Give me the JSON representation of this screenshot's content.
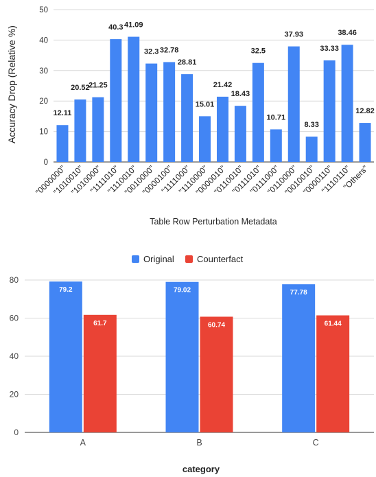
{
  "chart_data": [
    {
      "type": "bar",
      "title": "",
      "xlabel": "Table Row Perturbation Metadata",
      "ylabel": "Accuracy Drop (Relative %)",
      "ylim": [
        0,
        50
      ],
      "yticks": [
        "0",
        "10",
        "20",
        "30",
        "40",
        "50"
      ],
      "grid": true,
      "categories": [
        "\"0000000\"",
        "\"1010010\"",
        "\"1010000\"",
        "\"1111010\"",
        "\"1110010\"",
        "\"0010000\"",
        "\"0000100\"",
        "\"1111000\"",
        "\"1110000\"",
        "\"0000010\"",
        "\"0110010\"",
        "\"0111010\"",
        "\"0111000\"",
        "\"0110000\"",
        "\"0010010\"",
        "\"0000110\"",
        "\"1110110\"",
        "\"Others\""
      ],
      "values": [
        12.11,
        20.52,
        21.25,
        40.3,
        41.09,
        32.3,
        32.78,
        28.81,
        15.01,
        21.42,
        18.43,
        32.5,
        10.71,
        37.93,
        8.33,
        33.33,
        38.46,
        12.82
      ],
      "value_labels": [
        "12.11",
        "20.52",
        "21.25",
        "40.3",
        "41.09",
        "32.3",
        "32.78",
        "28.81",
        "15.01",
        "21.42",
        "18.43",
        "32.5",
        "10.71",
        "37.93",
        "8.33",
        "33.33",
        "38.46",
        "12.82"
      ],
      "bar_color": "#4285f4"
    },
    {
      "type": "bar",
      "title": "",
      "xlabel": "category",
      "ylabel": "",
      "ylim": [
        0,
        80
      ],
      "yticks": [
        "0",
        "20",
        "40",
        "60",
        "80"
      ],
      "grid": true,
      "legend_position": "top",
      "categories": [
        "A",
        "B",
        "C"
      ],
      "series": [
        {
          "name": "Original",
          "color": "#4285f4",
          "values": [
            79.2,
            79.02,
            77.78
          ],
          "labels": [
            "79.2",
            "79.02",
            "77.78"
          ]
        },
        {
          "name": "Counterfact",
          "color": "#ea4335",
          "values": [
            61.7,
            60.74,
            61.44
          ],
          "labels": [
            "61.7",
            "60.74",
            "61.44"
          ]
        }
      ]
    }
  ]
}
